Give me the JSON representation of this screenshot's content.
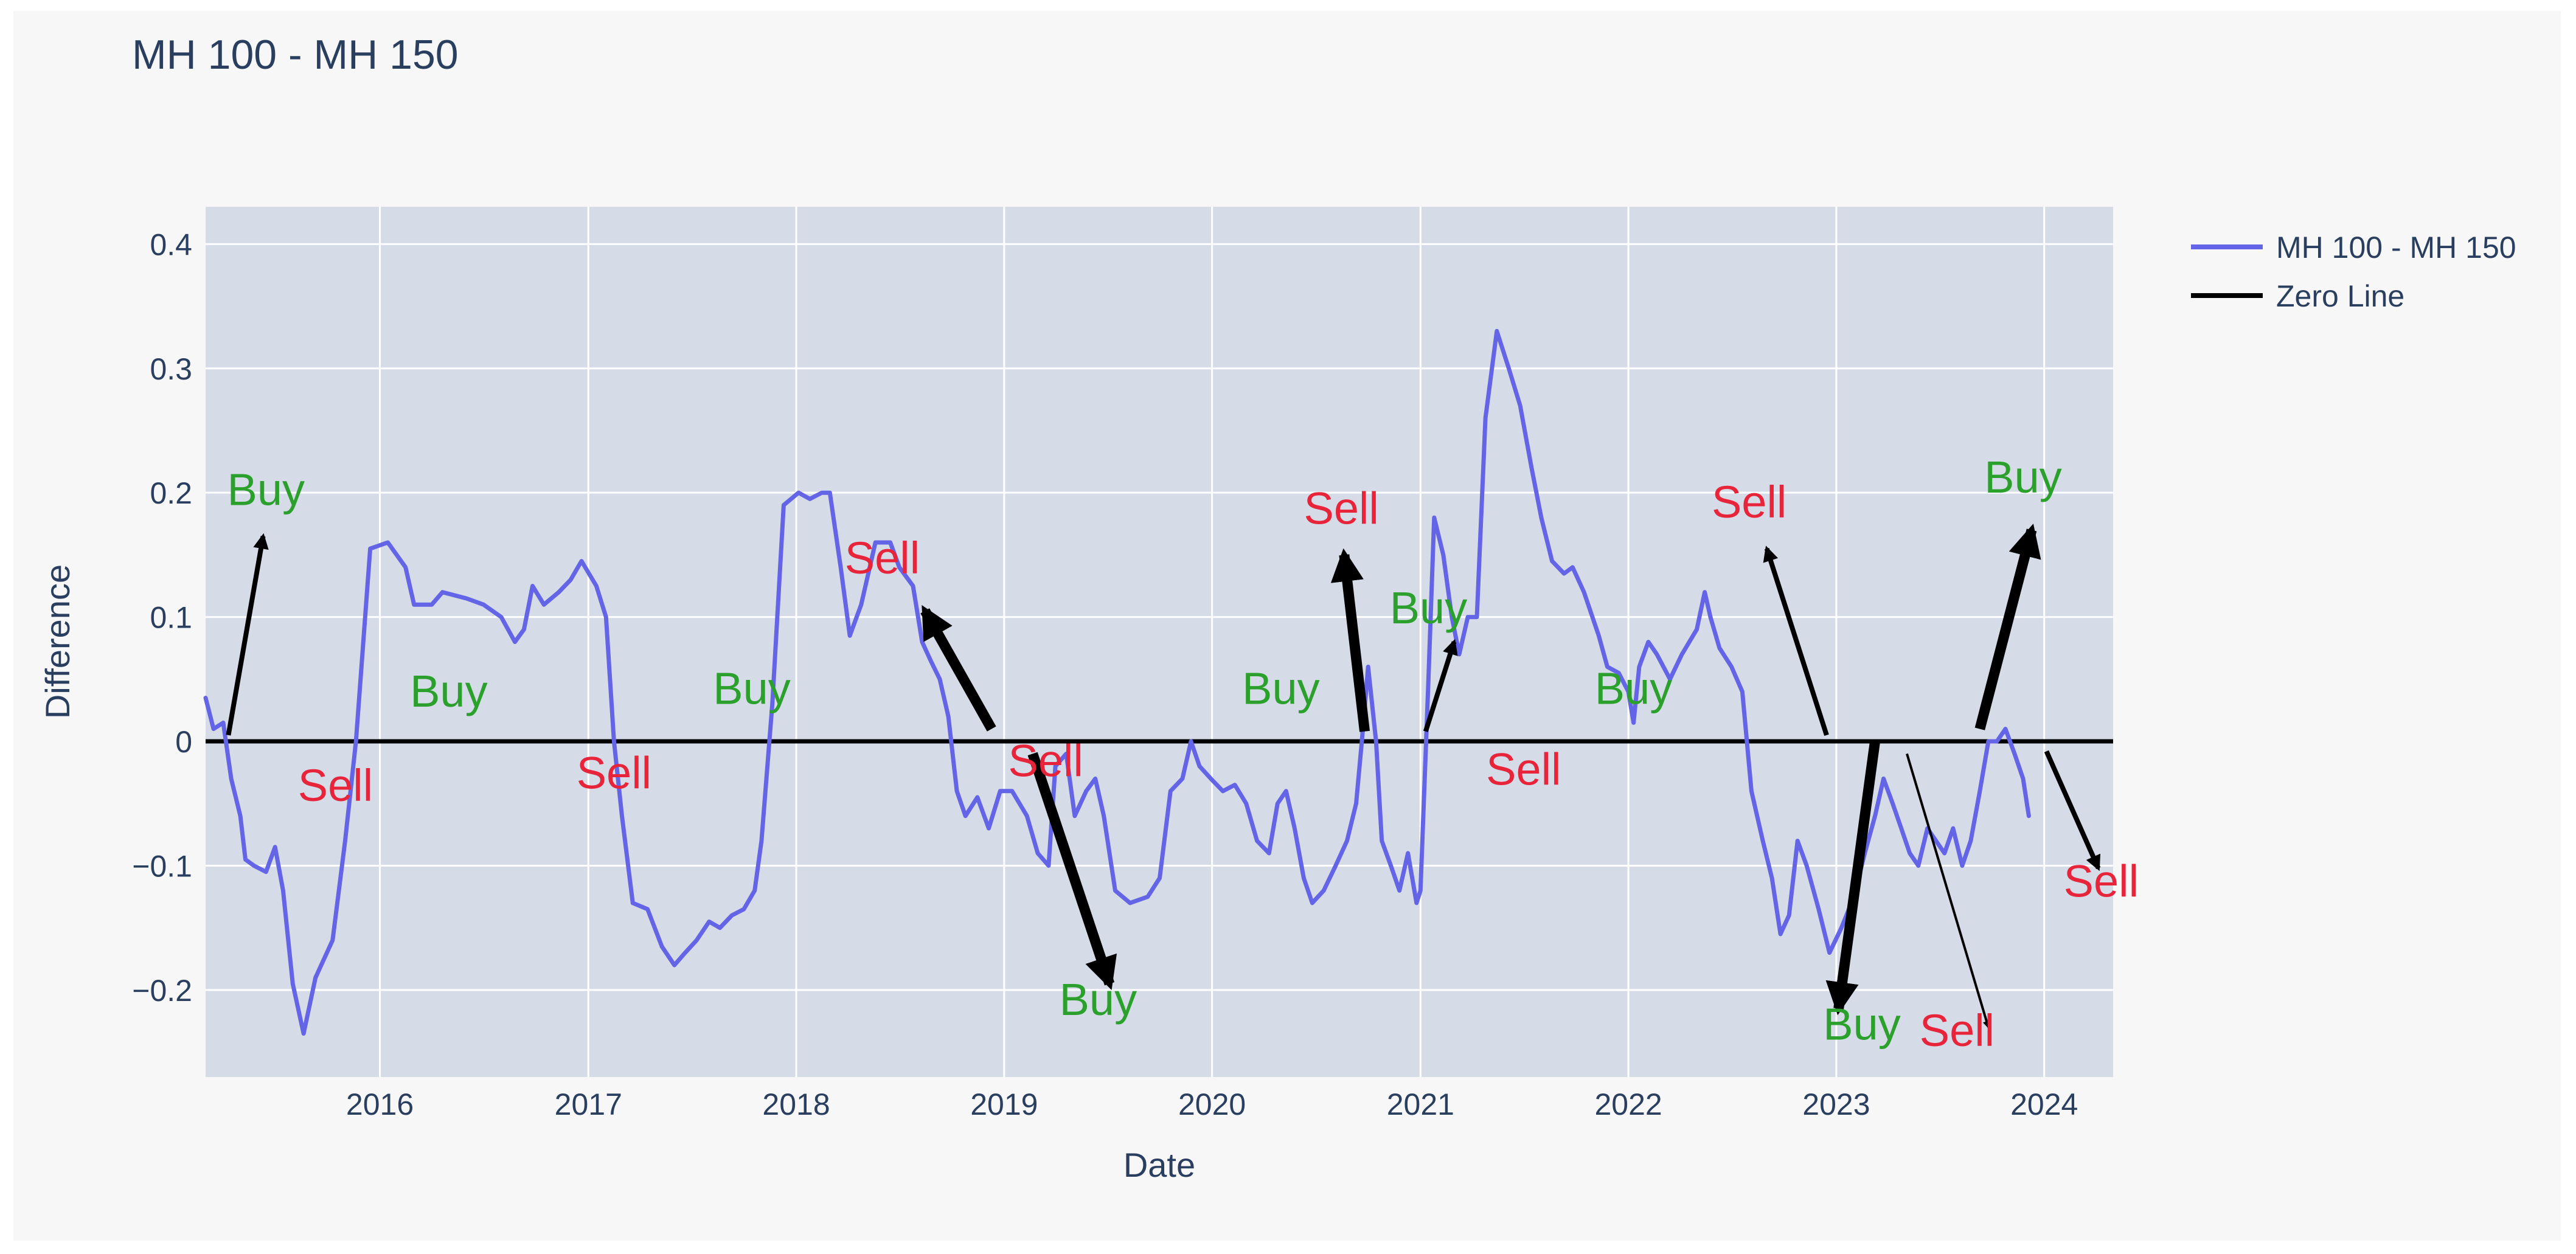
{
  "chart_data": {
    "type": "line",
    "title": "MH 100 - MH 150",
    "xlabel": "Date",
    "ylabel": "Difference",
    "xlim": [
      "2015-03-01",
      "2024-05-01"
    ],
    "ylim": [
      -0.27,
      0.43
    ],
    "x_ticks": [
      "2016",
      "2017",
      "2018",
      "2019",
      "2020",
      "2021",
      "2022",
      "2023",
      "2024"
    ],
    "y_ticks": [
      {
        "value": -0.2,
        "label": "−0.2"
      },
      {
        "value": -0.1,
        "label": "−0.1"
      },
      {
        "value": 0,
        "label": "0"
      },
      {
        "value": 0.1,
        "label": "0.1"
      },
      {
        "value": 0.2,
        "label": "0.2"
      },
      {
        "value": 0.3,
        "label": "0.3"
      },
      {
        "value": 0.4,
        "label": "0.4"
      }
    ],
    "grid": true,
    "legend_position": "top-right",
    "plot_background": "#d5dce8",
    "series": [
      {
        "name": "MH 100 - MH 150",
        "color": "#6464e6",
        "points": [
          [
            "2015-03-01",
            0.035
          ],
          [
            "2015-03-15",
            0.01
          ],
          [
            "2015-04-01",
            0.015
          ],
          [
            "2015-04-15",
            -0.03
          ],
          [
            "2015-05-01",
            -0.06
          ],
          [
            "2015-05-10",
            -0.095
          ],
          [
            "2015-05-25",
            -0.1
          ],
          [
            "2015-06-15",
            -0.105
          ],
          [
            "2015-07-01",
            -0.085
          ],
          [
            "2015-07-15",
            -0.12
          ],
          [
            "2015-08-01",
            -0.195
          ],
          [
            "2015-08-20",
            -0.235
          ],
          [
            "2015-09-10",
            -0.19
          ],
          [
            "2015-10-10",
            -0.16
          ],
          [
            "2015-11-01",
            -0.08
          ],
          [
            "2015-11-20",
            0.0
          ],
          [
            "2015-12-15",
            0.155
          ],
          [
            "2016-01-15",
            0.16
          ],
          [
            "2016-02-15",
            0.14
          ],
          [
            "2016-03-01",
            0.11
          ],
          [
            "2016-04-01",
            0.11
          ],
          [
            "2016-04-20",
            0.12
          ],
          [
            "2016-06-01",
            0.115
          ],
          [
            "2016-07-01",
            0.11
          ],
          [
            "2016-08-01",
            0.1
          ],
          [
            "2016-08-25",
            0.08
          ],
          [
            "2016-09-10",
            0.09
          ],
          [
            "2016-09-25",
            0.125
          ],
          [
            "2016-10-15",
            0.11
          ],
          [
            "2016-11-10",
            0.12
          ],
          [
            "2016-12-01",
            0.13
          ],
          [
            "2016-12-20",
            0.145
          ],
          [
            "2017-01-15",
            0.125
          ],
          [
            "2017-02-01",
            0.1
          ],
          [
            "2017-02-15",
            0.0
          ],
          [
            "2017-03-01",
            -0.06
          ],
          [
            "2017-03-20",
            -0.13
          ],
          [
            "2017-04-15",
            -0.135
          ],
          [
            "2017-05-10",
            -0.165
          ],
          [
            "2017-06-01",
            -0.18
          ],
          [
            "2017-06-20",
            -0.17
          ],
          [
            "2017-07-10",
            -0.16
          ],
          [
            "2017-08-01",
            -0.145
          ],
          [
            "2017-08-20",
            -0.15
          ],
          [
            "2017-09-10",
            -0.14
          ],
          [
            "2017-10-01",
            -0.135
          ],
          [
            "2017-10-20",
            -0.12
          ],
          [
            "2017-11-01",
            -0.08
          ],
          [
            "2017-11-20",
            0.03
          ],
          [
            "2017-12-10",
            0.19
          ],
          [
            "2018-01-05",
            0.2
          ],
          [
            "2018-01-25",
            0.195
          ],
          [
            "2018-02-15",
            0.2
          ],
          [
            "2018-03-01",
            0.2
          ],
          [
            "2018-03-20",
            0.14
          ],
          [
            "2018-04-05",
            0.085
          ],
          [
            "2018-04-25",
            0.11
          ],
          [
            "2018-05-20",
            0.16
          ],
          [
            "2018-06-15",
            0.16
          ],
          [
            "2018-07-01",
            0.14
          ],
          [
            "2018-07-25",
            0.125
          ],
          [
            "2018-08-10",
            0.08
          ],
          [
            "2018-08-25",
            0.065
          ],
          [
            "2018-09-10",
            0.05
          ],
          [
            "2018-09-25",
            0.02
          ],
          [
            "2018-10-10",
            -0.04
          ],
          [
            "2018-10-25",
            -0.06
          ],
          [
            "2018-11-15",
            -0.045
          ],
          [
            "2018-12-05",
            -0.07
          ],
          [
            "2018-12-25",
            -0.04
          ],
          [
            "2019-01-15",
            -0.04
          ],
          [
            "2019-02-10",
            -0.06
          ],
          [
            "2019-03-01",
            -0.09
          ],
          [
            "2019-03-20",
            -0.1
          ],
          [
            "2019-04-01",
            -0.02
          ],
          [
            "2019-04-20",
            -0.01
          ],
          [
            "2019-05-05",
            -0.06
          ],
          [
            "2019-05-25",
            -0.04
          ],
          [
            "2019-06-10",
            -0.03
          ],
          [
            "2019-06-25",
            -0.06
          ],
          [
            "2019-07-15",
            -0.12
          ],
          [
            "2019-08-10",
            -0.13
          ],
          [
            "2019-09-10",
            -0.125
          ],
          [
            "2019-10-01",
            -0.11
          ],
          [
            "2019-10-20",
            -0.04
          ],
          [
            "2019-11-10",
            -0.03
          ],
          [
            "2019-11-25",
            0.0
          ],
          [
            "2019-12-10",
            -0.02
          ],
          [
            "2019-12-30",
            -0.03
          ],
          [
            "2020-01-20",
            -0.04
          ],
          [
            "2020-02-10",
            -0.035
          ],
          [
            "2020-03-01",
            -0.05
          ],
          [
            "2020-03-20",
            -0.08
          ],
          [
            "2020-04-10",
            -0.09
          ],
          [
            "2020-04-25",
            -0.05
          ],
          [
            "2020-05-10",
            -0.04
          ],
          [
            "2020-05-25",
            -0.07
          ],
          [
            "2020-06-10",
            -0.11
          ],
          [
            "2020-06-25",
            -0.13
          ],
          [
            "2020-07-15",
            -0.12
          ],
          [
            "2020-08-05",
            -0.1
          ],
          [
            "2020-08-25",
            -0.08
          ],
          [
            "2020-09-10",
            -0.05
          ],
          [
            "2020-09-20",
            0.0
          ],
          [
            "2020-10-01",
            0.06
          ],
          [
            "2020-10-15",
            0.0
          ],
          [
            "2020-10-25",
            -0.08
          ],
          [
            "2020-11-10",
            -0.1
          ],
          [
            "2020-11-25",
            -0.12
          ],
          [
            "2020-12-10",
            -0.09
          ],
          [
            "2020-12-25",
            -0.13
          ],
          [
            "2021-01-01",
            -0.12
          ],
          [
            "2021-01-15",
            0.05
          ],
          [
            "2021-01-25",
            0.18
          ],
          [
            "2021-02-10",
            0.15
          ],
          [
            "2021-02-25",
            0.1
          ],
          [
            "2021-03-10",
            0.07
          ],
          [
            "2021-03-25",
            0.1
          ],
          [
            "2021-04-10",
            0.1
          ],
          [
            "2021-04-25",
            0.26
          ],
          [
            "2021-05-15",
            0.33
          ],
          [
            "2021-06-05",
            0.3
          ],
          [
            "2021-06-25",
            0.27
          ],
          [
            "2021-07-15",
            0.22
          ],
          [
            "2021-08-01",
            0.18
          ],
          [
            "2021-08-20",
            0.145
          ],
          [
            "2021-09-10",
            0.135
          ],
          [
            "2021-09-25",
            0.14
          ],
          [
            "2021-10-15",
            0.12
          ],
          [
            "2021-11-10",
            0.085
          ],
          [
            "2021-11-25",
            0.06
          ],
          [
            "2021-12-15",
            0.055
          ],
          [
            "2022-01-01",
            0.04
          ],
          [
            "2022-01-10",
            0.015
          ],
          [
            "2022-01-20",
            0.06
          ],
          [
            "2022-02-05",
            0.08
          ],
          [
            "2022-02-20",
            0.07
          ],
          [
            "2022-03-15",
            0.05
          ],
          [
            "2022-04-05",
            0.07
          ],
          [
            "2022-05-01",
            0.09
          ],
          [
            "2022-05-15",
            0.12
          ],
          [
            "2022-05-25",
            0.1
          ],
          [
            "2022-06-10",
            0.075
          ],
          [
            "2022-07-01",
            0.06
          ],
          [
            "2022-07-20",
            0.04
          ],
          [
            "2022-08-05",
            -0.04
          ],
          [
            "2022-08-25",
            -0.08
          ],
          [
            "2022-09-10",
            -0.11
          ],
          [
            "2022-09-25",
            -0.155
          ],
          [
            "2022-10-10",
            -0.14
          ],
          [
            "2022-10-25",
            -0.08
          ],
          [
            "2022-11-10",
            -0.1
          ],
          [
            "2022-12-01",
            -0.135
          ],
          [
            "2022-12-20",
            -0.17
          ],
          [
            "2023-01-10",
            -0.15
          ],
          [
            "2023-02-01",
            -0.125
          ],
          [
            "2023-02-20",
            -0.09
          ],
          [
            "2023-03-10",
            -0.06
          ],
          [
            "2023-03-25",
            -0.03
          ],
          [
            "2023-04-10",
            -0.05
          ],
          [
            "2023-04-25",
            -0.07
          ],
          [
            "2023-05-10",
            -0.09
          ],
          [
            "2023-05-25",
            -0.1
          ],
          [
            "2023-06-10",
            -0.07
          ],
          [
            "2023-06-25",
            -0.08
          ],
          [
            "2023-07-10",
            -0.09
          ],
          [
            "2023-07-25",
            -0.07
          ],
          [
            "2023-08-10",
            -0.1
          ],
          [
            "2023-08-25",
            -0.08
          ],
          [
            "2023-09-10",
            -0.04
          ],
          [
            "2023-09-25",
            0.0
          ],
          [
            "2023-10-10",
            0.0
          ],
          [
            "2023-10-25",
            0.01
          ],
          [
            "2023-11-10",
            -0.01
          ],
          [
            "2023-11-25",
            -0.03
          ],
          [
            "2023-12-05",
            -0.06
          ]
        ]
      },
      {
        "name": "Zero Line",
        "color": "#000000",
        "points": [
          [
            "2015-03-01",
            0
          ],
          [
            "2024-05-01",
            0
          ]
        ]
      }
    ],
    "annotations": [
      {
        "text": "Buy",
        "color": "#2ca02c",
        "x": "2015-06-15",
        "y": 0.19
      },
      {
        "text": "Sell",
        "color": "#e8243a",
        "x": "2015-10-15",
        "y": -0.048
      },
      {
        "text": "Buy",
        "color": "#2ca02c",
        "x": "2016-05-01",
        "y": 0.028
      },
      {
        "text": "Sell",
        "color": "#e8243a",
        "x": "2017-02-15",
        "y": -0.038
      },
      {
        "text": "Buy",
        "color": "#2ca02c",
        "x": "2017-10-15",
        "y": 0.03
      },
      {
        "text": "Sell",
        "color": "#e8243a",
        "x": "2018-06-01",
        "y": 0.135
      },
      {
        "text": "Sell",
        "color": "#e8243a",
        "x": "2019-03-15",
        "y": -0.028
      },
      {
        "text": "Buy",
        "color": "#2ca02c",
        "x": "2019-06-15",
        "y": -0.22
      },
      {
        "text": "Buy",
        "color": "#2ca02c",
        "x": "2020-05-01",
        "y": 0.03
      },
      {
        "text": "Sell",
        "color": "#e8243a",
        "x": "2020-08-15",
        "y": 0.175
      },
      {
        "text": "Buy",
        "color": "#2ca02c",
        "x": "2021-01-15",
        "y": 0.095
      },
      {
        "text": "Sell",
        "color": "#e8243a",
        "x": "2021-07-01",
        "y": -0.035
      },
      {
        "text": "Buy",
        "color": "#2ca02c",
        "x": "2022-01-10",
        "y": 0.03
      },
      {
        "text": "Sell",
        "color": "#e8243a",
        "x": "2022-08-01",
        "y": 0.18
      },
      {
        "text": "Buy",
        "color": "#2ca02c",
        "x": "2023-02-15",
        "y": -0.24
      },
      {
        "text": "Sell",
        "color": "#e8243a",
        "x": "2023-08-01",
        "y": -0.245
      },
      {
        "text": "Buy",
        "color": "#2ca02c",
        "x": "2023-11-25",
        "y": 0.2
      },
      {
        "text": "Sell",
        "color": "#e8243a",
        "x": "2024-04-10",
        "y": -0.125
      }
    ],
    "arrows": [
      {
        "from": [
          "2015-04-10",
          0.005
        ],
        "to": [
          "2015-06-10",
          0.165
        ],
        "weight": "medium"
      },
      {
        "from": [
          "2018-12-10",
          0.01
        ],
        "to": [
          "2018-08-15",
          0.105
        ],
        "weight": "heavy"
      },
      {
        "from": [
          "2019-02-20",
          -0.01
        ],
        "to": [
          "2019-07-05",
          -0.195
        ],
        "weight": "heavy"
      },
      {
        "from": [
          "2020-09-25",
          0.008
        ],
        "to": [
          "2020-08-20",
          0.15
        ],
        "weight": "heavy"
      },
      {
        "from": [
          "2021-01-10",
          0.008
        ],
        "to": [
          "2021-03-01",
          0.08
        ],
        "weight": "medium"
      },
      {
        "from": [
          "2022-12-15",
          0.005
        ],
        "to": [
          "2022-09-01",
          0.155
        ],
        "weight": "medium"
      },
      {
        "from": [
          "2023-03-10",
          0.0
        ],
        "to": [
          "2023-01-05",
          -0.215
        ],
        "weight": "heavy"
      },
      {
        "from": [
          "2023-05-05",
          -0.01
        ],
        "to": [
          "2023-09-25",
          -0.23
        ],
        "weight": "thin"
      },
      {
        "from": [
          "2023-09-10",
          0.01
        ],
        "to": [
          "2023-12-10",
          0.17
        ],
        "weight": "heavy"
      },
      {
        "from": [
          "2024-01-05",
          -0.008
        ],
        "to": [
          "2024-04-05",
          -0.102
        ],
        "weight": "medium"
      }
    ]
  }
}
